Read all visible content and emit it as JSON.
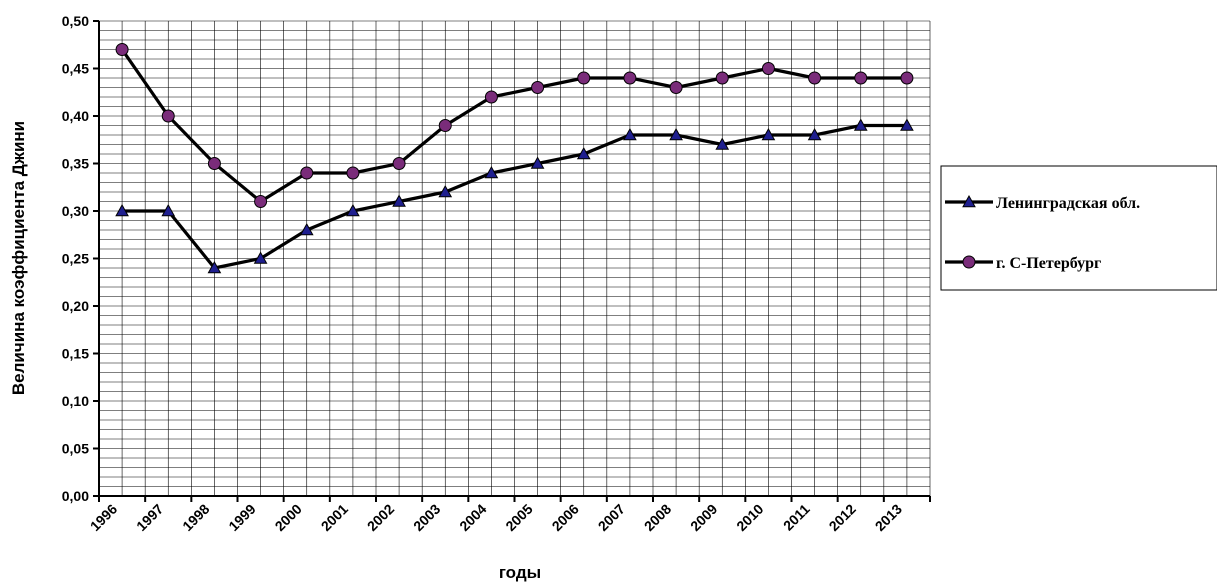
{
  "chart_data": {
    "type": "line",
    "title": "",
    "xlabel": "годы",
    "ylabel": "Величина коэффициента Джини",
    "ylim": [
      0,
      0.5
    ],
    "y_ticks": [
      "0,00",
      "0,05",
      "0,10",
      "0,15",
      "0,20",
      "0,25",
      "0,30",
      "0,35",
      "0,40",
      "0,45",
      "0,50"
    ],
    "categories": [
      "1996",
      "1997",
      "1998",
      "1999",
      "2000",
      "2001",
      "2002",
      "2003",
      "2004",
      "2005",
      "2006",
      "2007",
      "2008",
      "2009",
      "2010",
      "2011",
      "2012",
      "2013"
    ],
    "grid": true,
    "legend_position": "right",
    "series": [
      {
        "name": "Ленинградская обл.",
        "marker": "triangle",
        "marker_color": "#1f1f8f",
        "line_color": "#000000",
        "values": [
          0.3,
          0.3,
          0.24,
          0.25,
          0.28,
          0.3,
          0.31,
          0.32,
          0.34,
          0.35,
          0.36,
          0.38,
          0.38,
          0.37,
          0.38,
          0.38,
          0.39,
          0.39
        ]
      },
      {
        "name": "г. С-Петербург",
        "marker": "circle",
        "marker_color": "#7a2c7a",
        "line_color": "#000000",
        "values": [
          0.47,
          0.4,
          0.35,
          0.31,
          0.34,
          0.34,
          0.35,
          0.39,
          0.42,
          0.43,
          0.44,
          0.44,
          0.43,
          0.44,
          0.45,
          0.44,
          0.44,
          0.44
        ]
      }
    ]
  }
}
